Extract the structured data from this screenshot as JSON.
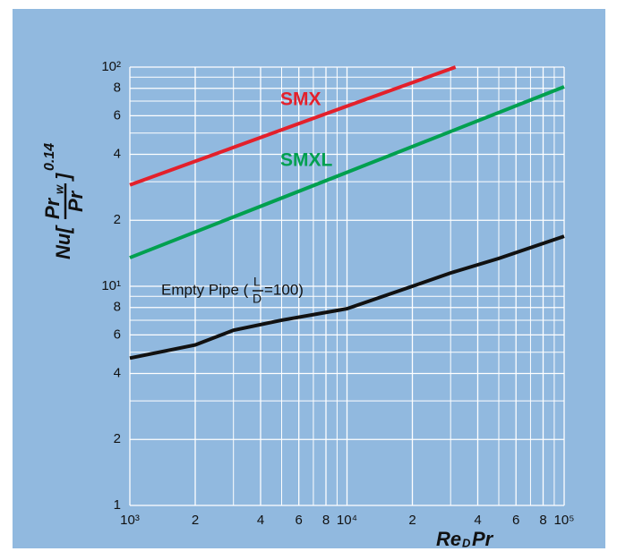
{
  "chart_data": {
    "type": "line",
    "x_label": {
      "main": "Re",
      "sub": "D",
      "tail": "Pr"
    },
    "y_label": {
      "left": "Nu[",
      "num": "Pr",
      "num_sub": "w",
      "den": "Pr",
      "right": "]",
      "power": "0.14"
    },
    "log_x": true,
    "log_y": true,
    "grid": true,
    "minor_grid": true,
    "xlim": [
      1000,
      100000
    ],
    "ylim": [
      1,
      100
    ],
    "xticks": [
      {
        "value": 1000,
        "label": "10³"
      },
      {
        "value": 2000,
        "label": "2"
      },
      {
        "value": 4000,
        "label": "4"
      },
      {
        "value": 6000,
        "label": "6"
      },
      {
        "value": 8000,
        "label": "8"
      },
      {
        "value": 10000,
        "label": "10⁴"
      },
      {
        "value": 20000,
        "label": "2"
      },
      {
        "value": 40000,
        "label": "4"
      },
      {
        "value": 60000,
        "label": "6"
      },
      {
        "value": 80000,
        "label": "8"
      },
      {
        "value": 100000,
        "label": "10⁵"
      }
    ],
    "yticks": [
      1,
      2,
      4,
      6,
      8,
      {
        "value": 10,
        "label": "10¹"
      },
      {
        "value": 20,
        "label": "2"
      },
      {
        "value": 40,
        "label": "4"
      },
      {
        "value": 60,
        "label": "6"
      },
      {
        "value": 80,
        "label": "8"
      },
      {
        "value": 100,
        "label": "10²"
      }
    ],
    "series": [
      {
        "name": "SMX",
        "color": "#e3202b",
        "x": [
          1000,
          3000,
          10000,
          31600
        ],
        "values": [
          29,
          43,
          66.4,
          100
        ]
      },
      {
        "name": "SMXL",
        "color": "#00a04f",
        "x": [
          1000,
          10000,
          100000
        ],
        "values": [
          13.5,
          33.1,
          81.3
        ]
      },
      {
        "label_parts": [
          "Empty Pipe (",
          "L",
          "D",
          "=100)"
        ],
        "color": "#111111",
        "x": [
          1000,
          2000,
          3000,
          5000,
          10000,
          20000,
          30000,
          50000,
          100000
        ],
        "values": [
          4.7,
          5.4,
          6.3,
          7.0,
          7.9,
          10.0,
          11.5,
          13.4,
          16.9
        ]
      }
    ]
  }
}
